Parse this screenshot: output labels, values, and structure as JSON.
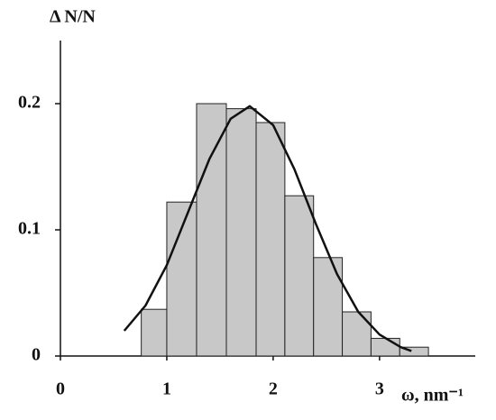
{
  "chart_data": {
    "type": "histogram",
    "ylabel": "Δ N/N",
    "xlabel": "ω, nm⁻¹",
    "bins": [
      0.76,
      1.0,
      1.28,
      1.56,
      1.84,
      2.11,
      2.38,
      2.65,
      2.92,
      3.19,
      3.46
    ],
    "values": [
      0.037,
      0.122,
      0.2,
      0.196,
      0.185,
      0.127,
      0.078,
      0.035,
      0.014,
      0.007
    ],
    "color": "#c8c8c8",
    "curve": {
      "x": [
        0.6,
        0.8,
        1.0,
        1.2,
        1.4,
        1.6,
        1.78,
        2.0,
        2.2,
        2.4,
        2.6,
        2.8,
        3.0,
        3.2,
        3.3
      ],
      "values": [
        0.02,
        0.04,
        0.072,
        0.114,
        0.156,
        0.188,
        0.198,
        0.183,
        0.148,
        0.105,
        0.065,
        0.035,
        0.017,
        0.007,
        0.004
      ],
      "color": "#111111"
    },
    "xlim": [
      0,
      3.9
    ],
    "ylim": [
      0,
      0.25
    ],
    "xticks": [
      0,
      1,
      2,
      3
    ],
    "yticks": [
      0,
      0.1,
      0.2
    ]
  }
}
